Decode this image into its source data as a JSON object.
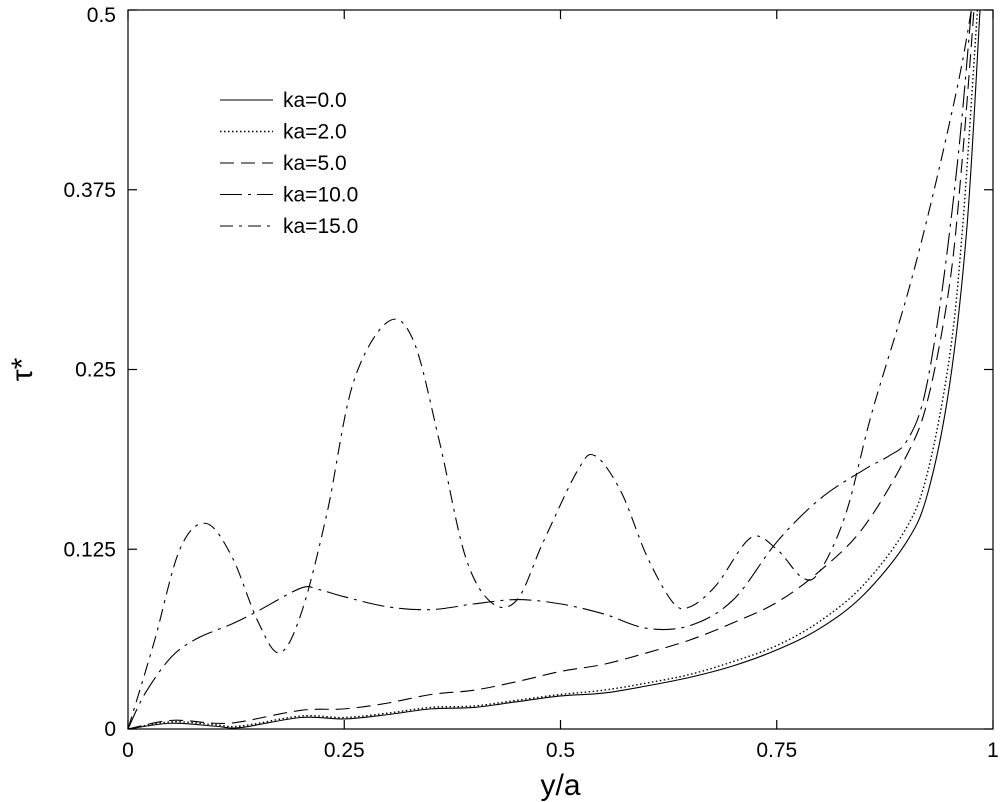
{
  "chart_data": {
    "type": "line",
    "title": "",
    "xlabel": "y/a",
    "ylabel": "τ*",
    "xlim": [
      0,
      1
    ],
    "ylim": [
      0,
      0.5
    ],
    "x_ticks": [
      {
        "value": 0,
        "label": "0"
      },
      {
        "value": 0.25,
        "label": "0.25"
      },
      {
        "value": 0.5,
        "label": "0.5"
      },
      {
        "value": 0.75,
        "label": "0.75"
      },
      {
        "value": 1,
        "label": "1"
      }
    ],
    "y_ticks": [
      {
        "value": 0,
        "label": "0"
      },
      {
        "value": 0.125,
        "label": "0.125"
      },
      {
        "value": 0.25,
        "label": "0.25"
      },
      {
        "value": 0.375,
        "label": "0.375"
      },
      {
        "value": 0.5,
        "label": "0.5"
      }
    ],
    "grid": false,
    "legend_position": "top-left",
    "series": [
      {
        "name": "ka=0.0",
        "style": "solid",
        "points": [
          [
            0,
            0
          ],
          [
            0.05,
            0.004
          ],
          [
            0.1,
            0.002
          ],
          [
            0.13,
            0.001
          ],
          [
            0.2,
            0.008
          ],
          [
            0.25,
            0.007
          ],
          [
            0.3,
            0.01
          ],
          [
            0.35,
            0.014
          ],
          [
            0.4,
            0.015
          ],
          [
            0.45,
            0.019
          ],
          [
            0.5,
            0.023
          ],
          [
            0.55,
            0.025
          ],
          [
            0.6,
            0.03
          ],
          [
            0.65,
            0.036
          ],
          [
            0.7,
            0.044
          ],
          [
            0.75,
            0.055
          ],
          [
            0.8,
            0.07
          ],
          [
            0.85,
            0.093
          ],
          [
            0.9,
            0.13
          ],
          [
            0.925,
            0.165
          ],
          [
            0.95,
            0.24
          ],
          [
            0.97,
            0.35
          ],
          [
            0.985,
            0.5
          ]
        ]
      },
      {
        "name": "ka=2.0",
        "style": "dotted",
        "points": [
          [
            0,
            0
          ],
          [
            0.05,
            0.005
          ],
          [
            0.1,
            0.003
          ],
          [
            0.13,
            0.002
          ],
          [
            0.2,
            0.009
          ],
          [
            0.25,
            0.008
          ],
          [
            0.3,
            0.011
          ],
          [
            0.35,
            0.015
          ],
          [
            0.4,
            0.016
          ],
          [
            0.45,
            0.02
          ],
          [
            0.5,
            0.024
          ],
          [
            0.55,
            0.027
          ],
          [
            0.6,
            0.032
          ],
          [
            0.65,
            0.038
          ],
          [
            0.7,
            0.047
          ],
          [
            0.75,
            0.058
          ],
          [
            0.8,
            0.075
          ],
          [
            0.85,
            0.1
          ],
          [
            0.9,
            0.14
          ],
          [
            0.925,
            0.18
          ],
          [
            0.95,
            0.26
          ],
          [
            0.965,
            0.35
          ],
          [
            0.982,
            0.5
          ]
        ]
      },
      {
        "name": "ka=5.0",
        "style": "dashed",
        "points": [
          [
            0,
            0
          ],
          [
            0.05,
            0.006
          ],
          [
            0.1,
            0.004
          ],
          [
            0.13,
            0.005
          ],
          [
            0.2,
            0.013
          ],
          [
            0.25,
            0.014
          ],
          [
            0.3,
            0.018
          ],
          [
            0.35,
            0.024
          ],
          [
            0.4,
            0.027
          ],
          [
            0.45,
            0.033
          ],
          [
            0.5,
            0.04
          ],
          [
            0.55,
            0.045
          ],
          [
            0.6,
            0.053
          ],
          [
            0.65,
            0.062
          ],
          [
            0.7,
            0.074
          ],
          [
            0.75,
            0.088
          ],
          [
            0.8,
            0.11
          ],
          [
            0.85,
            0.14
          ],
          [
            0.9,
            0.19
          ],
          [
            0.925,
            0.23
          ],
          [
            0.95,
            0.31
          ],
          [
            0.965,
            0.4
          ],
          [
            0.978,
            0.5
          ]
        ]
      },
      {
        "name": "ka=10.0",
        "style": "long-dash-dot",
        "points": [
          [
            0,
            0
          ],
          [
            0.02,
            0.025
          ],
          [
            0.05,
            0.05
          ],
          [
            0.08,
            0.063
          ],
          [
            0.12,
            0.073
          ],
          [
            0.15,
            0.082
          ],
          [
            0.2,
            0.098
          ],
          [
            0.22,
            0.097
          ],
          [
            0.25,
            0.092
          ],
          [
            0.3,
            0.085
          ],
          [
            0.35,
            0.083
          ],
          [
            0.4,
            0.087
          ],
          [
            0.45,
            0.09
          ],
          [
            0.5,
            0.087
          ],
          [
            0.55,
            0.08
          ],
          [
            0.6,
            0.07
          ],
          [
            0.65,
            0.072
          ],
          [
            0.7,
            0.09
          ],
          [
            0.75,
            0.13
          ],
          [
            0.8,
            0.16
          ],
          [
            0.85,
            0.18
          ],
          [
            0.88,
            0.19
          ],
          [
            0.9,
            0.2
          ],
          [
            0.92,
            0.23
          ],
          [
            0.94,
            0.3
          ],
          [
            0.96,
            0.4
          ],
          [
            0.975,
            0.5
          ]
        ]
      },
      {
        "name": "ka=15.0",
        "style": "dash-dot",
        "points": [
          [
            0,
            0
          ],
          [
            0.03,
            0.06
          ],
          [
            0.06,
            0.125
          ],
          [
            0.09,
            0.143
          ],
          [
            0.12,
            0.12
          ],
          [
            0.15,
            0.075
          ],
          [
            0.175,
            0.053
          ],
          [
            0.2,
            0.08
          ],
          [
            0.23,
            0.15
          ],
          [
            0.26,
            0.24
          ],
          [
            0.3,
            0.283
          ],
          [
            0.33,
            0.27
          ],
          [
            0.36,
            0.2
          ],
          [
            0.39,
            0.12
          ],
          [
            0.42,
            0.088
          ],
          [
            0.45,
            0.09
          ],
          [
            0.48,
            0.13
          ],
          [
            0.52,
            0.18
          ],
          [
            0.54,
            0.19
          ],
          [
            0.57,
            0.165
          ],
          [
            0.6,
            0.12
          ],
          [
            0.63,
            0.088
          ],
          [
            0.65,
            0.085
          ],
          [
            0.68,
            0.1
          ],
          [
            0.72,
            0.133
          ],
          [
            0.75,
            0.125
          ],
          [
            0.78,
            0.105
          ],
          [
            0.8,
            0.11
          ],
          [
            0.83,
            0.15
          ],
          [
            0.86,
            0.22
          ],
          [
            0.9,
            0.3
          ],
          [
            0.93,
            0.37
          ],
          [
            0.96,
            0.45
          ],
          [
            0.975,
            0.5
          ]
        ]
      }
    ]
  }
}
